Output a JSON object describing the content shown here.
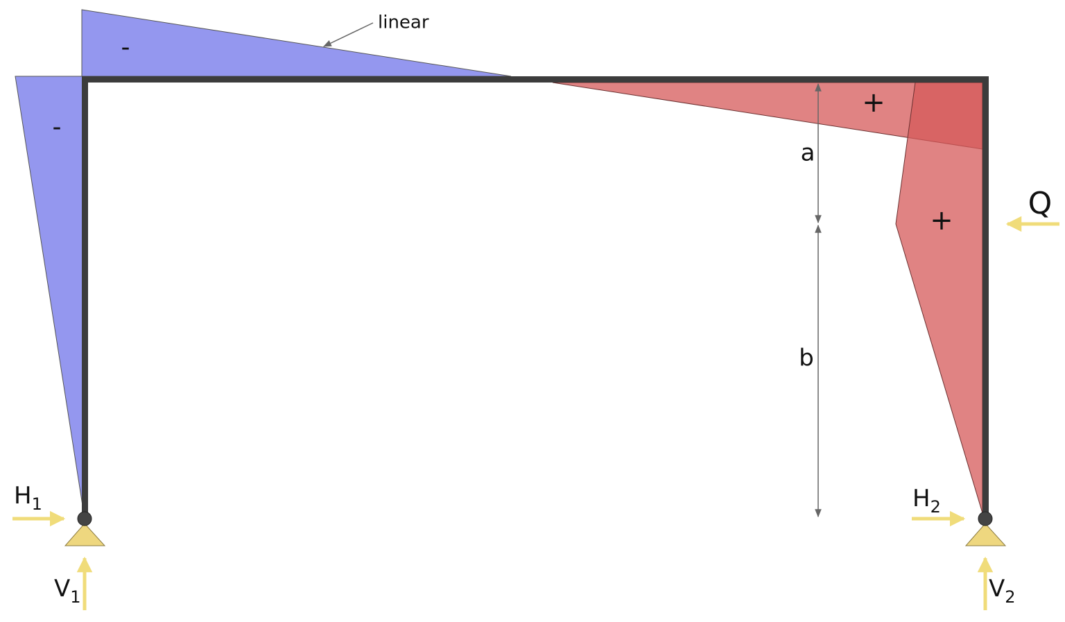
{
  "annotation": "linear",
  "signs": [
    "-",
    "-",
    "+",
    "+"
  ],
  "dimensions": [
    "a",
    "b"
  ],
  "load": "Q",
  "reactions": [
    {
      "letter": "H",
      "sub": "1"
    },
    {
      "letter": "V",
      "sub": "1"
    },
    {
      "letter": "H",
      "sub": "2"
    },
    {
      "letter": "V",
      "sub": "2"
    }
  ]
}
